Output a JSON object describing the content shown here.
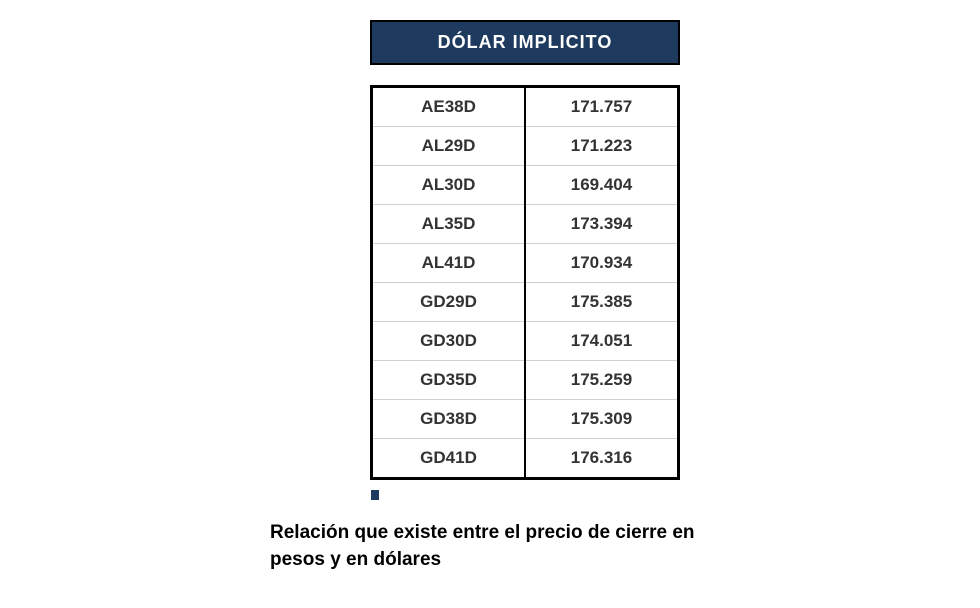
{
  "table": {
    "title": "DÓLAR IMPLICITO",
    "header_bg": "#1f3a5f",
    "header_text_color": "#ffffff",
    "border_color": "#000000",
    "row_divider_color": "#d0d0d0",
    "cell_text_color": "#333333",
    "title_fontsize": 18,
    "cell_fontsize": 17,
    "rows": [
      {
        "ticker": "AE38D",
        "value": "171.757"
      },
      {
        "ticker": "AL29D",
        "value": "171.223"
      },
      {
        "ticker": "AL30D",
        "value": "169.404"
      },
      {
        "ticker": "AL35D",
        "value": "173.394"
      },
      {
        "ticker": "AL41D",
        "value": "170.934"
      },
      {
        "ticker": "GD29D",
        "value": "175.385"
      },
      {
        "ticker": "GD30D",
        "value": "174.051"
      },
      {
        "ticker": "GD35D",
        "value": "175.259"
      },
      {
        "ticker": "GD38D",
        "value": "175.309"
      },
      {
        "ticker": "GD41D",
        "value": "176.316"
      }
    ]
  },
  "caption": {
    "text": "Relación que existe entre el precio de cierre en pesos y en dólares",
    "fontsize": 19,
    "font_weight": "bold",
    "color": "#000000"
  }
}
